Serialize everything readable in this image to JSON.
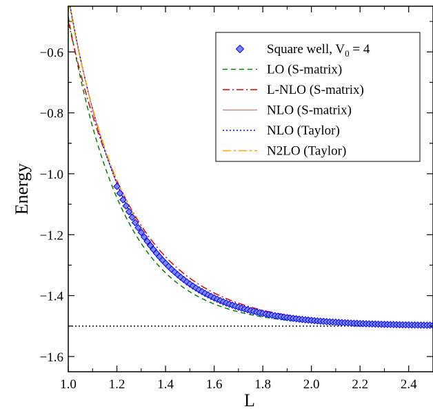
{
  "chart_data": {
    "type": "line",
    "title": "",
    "xlabel": "L",
    "ylabel": "Energy",
    "xlim": [
      1.0,
      2.5
    ],
    "ylim": [
      -1.65,
      -0.45
    ],
    "xticks": [
      1.0,
      1.2,
      1.4,
      1.6,
      1.8,
      2.0,
      2.2,
      2.4
    ],
    "xtick_labels": [
      "1.0",
      "1.2",
      "1.4",
      "1.6",
      "1.8",
      "2.0",
      "2.2",
      "2.4"
    ],
    "yticks": [
      -1.6,
      -1.4,
      -1.2,
      -1.0,
      -0.8,
      -0.6
    ],
    "ytick_labels": [
      "-1.6",
      "-1.4",
      "-1.2",
      "-1.0",
      "-0.8",
      "-0.6"
    ],
    "grid": false,
    "legend_position": "top-right",
    "reference_line": {
      "y": -1.5,
      "style": "dotted",
      "color": "#000000"
    },
    "series": [
      {
        "name": "Square well, V₀ = 4",
        "legend_main": "Square well, V",
        "legend_sub": "0",
        "legend_tail": " = 4",
        "kind": "scatter",
        "marker": "diamond",
        "color": "#0000ff",
        "fill": "#7b86f0",
        "asymptote": -1.5,
        "amplitude": 1.02,
        "rate": 4.0,
        "x_start": 1.2,
        "x_end": 2.5,
        "step": 0.0125
      },
      {
        "name": "LO (S-matrix)",
        "kind": "line",
        "dash": "7,5",
        "color": "#008000",
        "asymptote": -1.5,
        "amplitude": 1.016,
        "rate": 4.4,
        "x_start": 1.0,
        "x_end": 2.5
      },
      {
        "name": "L-NLO (S-matrix)",
        "kind": "line",
        "dash": "10,4,2,4",
        "color": "#e00000",
        "asymptote": -1.5,
        "amplitude": 1.0,
        "rate": 3.7,
        "x_start": 1.0,
        "x_end": 2.5
      },
      {
        "name": "NLO (S-matrix)",
        "kind": "line",
        "dash": "",
        "color": "#bc8f8f",
        "asymptote": -1.5,
        "amplitude": 1.084,
        "rate": 4.2,
        "x_start": 1.0,
        "x_end": 2.5
      },
      {
        "name": "NLO (Taylor)",
        "kind": "line",
        "dash": "2,3",
        "color": "#0000ff",
        "asymptote": -1.5,
        "amplitude": 1.084,
        "rate": 4.2,
        "x_start": 1.0,
        "x_end": 2.5
      },
      {
        "name": "N2LO (Taylor)",
        "kind": "line",
        "dash": "12,4,3,4",
        "color": "#ffa500",
        "asymptote": -1.5,
        "amplitude": 1.068,
        "rate": 4.0,
        "x_start": 1.0,
        "x_end": 2.5
      }
    ]
  }
}
